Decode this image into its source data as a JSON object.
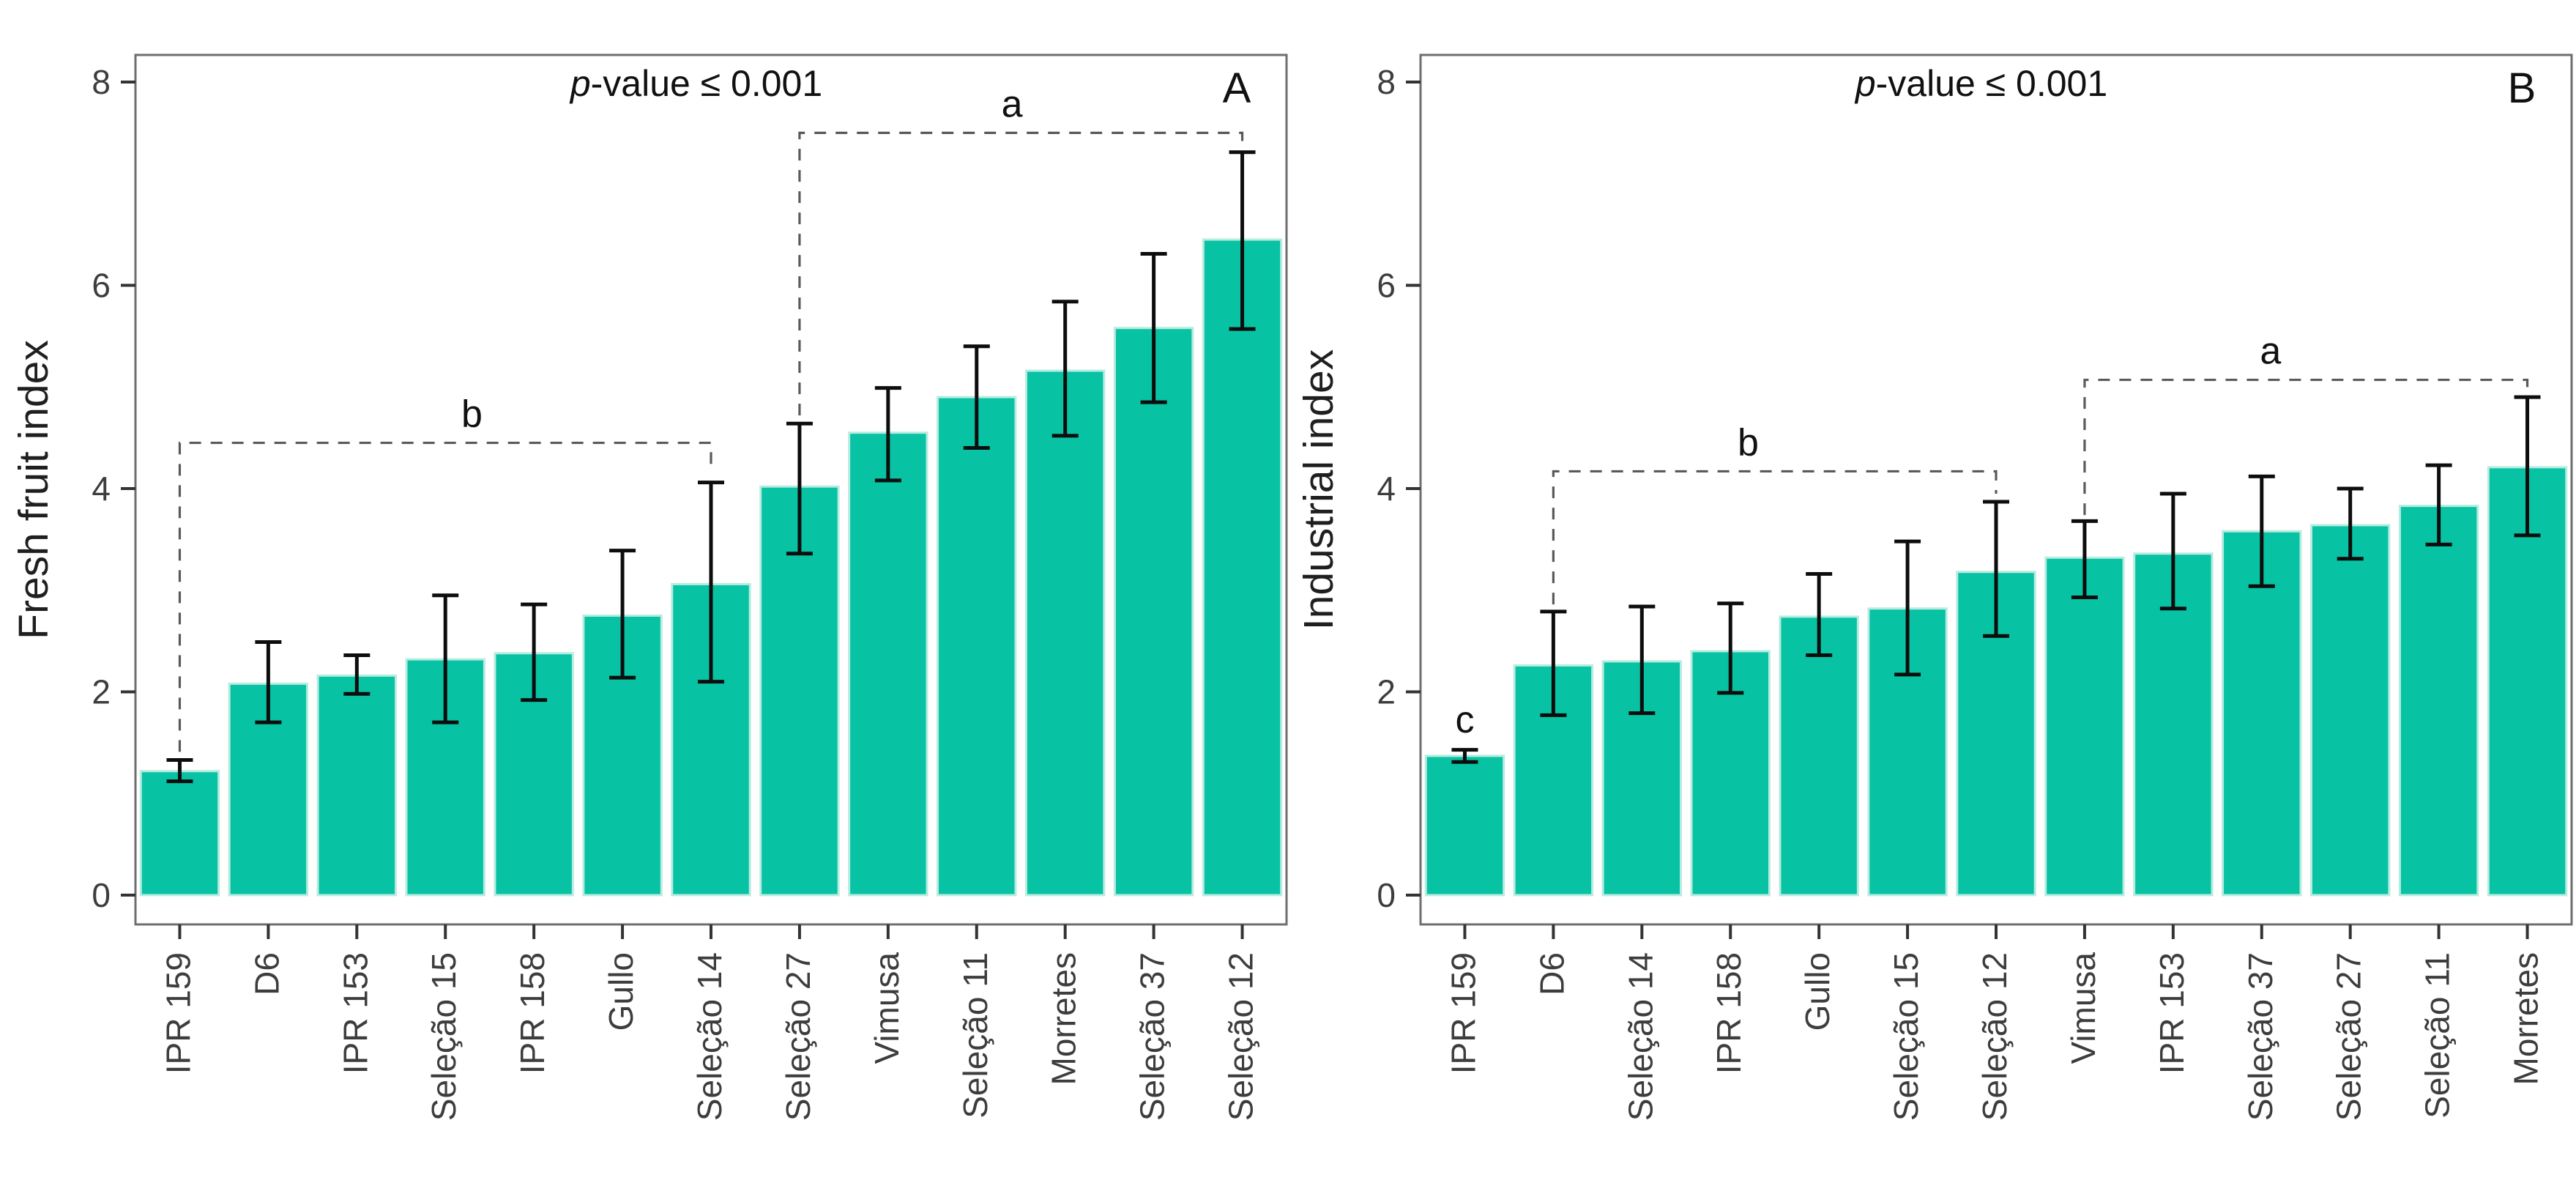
{
  "figure": {
    "description": "Two-panel bar chart of fresh fruit and industrial quality indexes for passion fruit genotypes",
    "background": "#ffffff",
    "bar_fill": "#07c2a3",
    "bar_stroke": "#b7ece0",
    "error_color": "#0d0d0d",
    "border_color": "#6e6e6e",
    "tick_color": "#333333",
    "tick_label_color": "#3d3d3d",
    "axis_title_color": "#1f1f1f",
    "annotation_color": "#111111",
    "bracket_color": "#5a5a5a"
  },
  "chart_data": [
    {
      "type": "bar",
      "panel_label": "A",
      "ylabel": "Fresh fruit index",
      "annotation": "p-value ≤ 0.001",
      "annotation_italic_prefix": "p",
      "annotation_rest": "-value ≤ 0.001",
      "ylim": [
        0,
        8
      ],
      "yticks": [
        0,
        2,
        4,
        6,
        8
      ],
      "grid": false,
      "legend": "none",
      "categories": [
        "IPR 159",
        "D6",
        "IPR 153",
        "Seleção 15",
        "IPR 158",
        "Gullo",
        "Seleção 14",
        "Seleção 27",
        "Vimusa",
        "Seleção 11",
        "Morretes",
        "Seleção 37",
        "Seleção 12"
      ],
      "values": [
        1.22,
        2.08,
        2.16,
        2.32,
        2.38,
        2.75,
        3.06,
        4.02,
        4.55,
        4.9,
        5.16,
        5.58,
        6.45
      ],
      "error_low": [
        1.12,
        1.7,
        1.98,
        1.7,
        1.92,
        2.14,
        2.1,
        3.36,
        4.08,
        4.4,
        4.52,
        4.85,
        5.57
      ],
      "error_high": [
        1.33,
        2.49,
        2.36,
        2.95,
        2.86,
        3.39,
        4.06,
        4.64,
        4.99,
        5.4,
        5.84,
        6.31,
        7.31
      ],
      "sig_brackets": [
        {
          "label": "b",
          "from": 0,
          "to": 6,
          "top": 4.45,
          "left_start": 1.41,
          "right_end": 4.18,
          "label_at": 3.3
        },
        {
          "label": "a",
          "from": 7,
          "to": 12,
          "top": 7.5,
          "left_start": 4.72,
          "right_end": 7.42,
          "label_at": 9.4
        }
      ],
      "letter_annotations": []
    },
    {
      "type": "bar",
      "panel_label": "B",
      "ylabel": "Industrial index",
      "annotation": "p-value ≤ 0.001",
      "annotation_italic_prefix": "p",
      "annotation_rest": "-value ≤ 0.001",
      "ylim": [
        0,
        8
      ],
      "yticks": [
        0,
        2,
        4,
        6,
        8
      ],
      "grid": false,
      "legend": "none",
      "categories": [
        "IPR 159",
        "D6",
        "Seleção 14",
        "IPR 158",
        "Gullo",
        "Seleção 15",
        "Seleção 12",
        "Vimusa",
        "IPR 153",
        "Seleção 37",
        "Seleção 27",
        "Seleção 11",
        "Morretes"
      ],
      "values": [
        1.37,
        2.26,
        2.3,
        2.4,
        2.74,
        2.82,
        3.18,
        3.32,
        3.36,
        3.58,
        3.64,
        3.83,
        4.21
      ],
      "error_low": [
        1.31,
        1.77,
        1.79,
        1.99,
        2.36,
        2.17,
        2.55,
        2.93,
        2.82,
        3.04,
        3.31,
        3.45,
        3.54
      ],
      "error_high": [
        1.43,
        2.79,
        2.84,
        2.87,
        3.16,
        3.48,
        3.87,
        3.68,
        3.95,
        4.12,
        4.0,
        4.23,
        4.9
      ],
      "sig_brackets": [
        {
          "label": "b",
          "from": 1,
          "to": 6,
          "top": 4.17,
          "left_start": 2.86,
          "right_end": 3.95,
          "label_at": 3.2
        },
        {
          "label": "a",
          "from": 7,
          "to": 12,
          "top": 5.07,
          "left_start": 3.74,
          "right_end": 4.97,
          "label_at": 9.1
        }
      ],
      "letter_annotations": [
        {
          "text": "c",
          "at": 0,
          "y": 1.6
        }
      ]
    }
  ]
}
